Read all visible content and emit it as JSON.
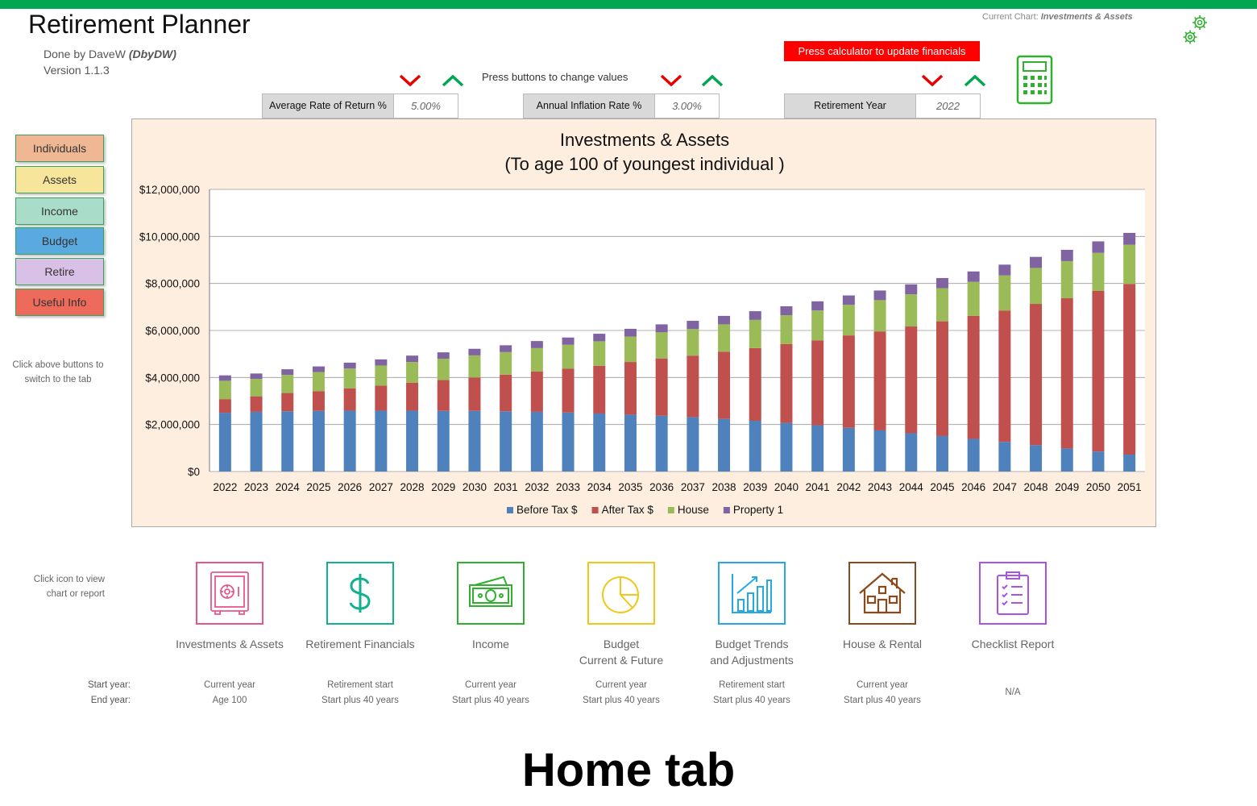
{
  "app": {
    "title": "Retirement Planner",
    "author_prefix": "Done by DaveW ",
    "author_tag": "(DbyDW)",
    "version": "Version 1.1.3",
    "current_chart_label": "Current Chart: ",
    "current_chart_value": "Investments & Assets"
  },
  "controls": {
    "press_calc": "Press calculator to update financials",
    "press_hint": "Press buttons to change values",
    "params": [
      {
        "label": "Average Rate of Return %",
        "value": "5.00%"
      },
      {
        "label": "Annual Inflation Rate %",
        "value": "3.00%"
      },
      {
        "label": "Retirement Year",
        "value": "2022"
      }
    ]
  },
  "nav": {
    "items": [
      {
        "label": "Individuals",
        "color": "#f0b794"
      },
      {
        "label": "Assets",
        "color": "#f7e59b"
      },
      {
        "label": "Income",
        "color": "#a9dcc9"
      },
      {
        "label": "Budget",
        "color": "#5aaae0"
      },
      {
        "label": "Retire",
        "color": "#d9c0e6"
      },
      {
        "label": "Useful Info",
        "color": "#ee6b5c"
      }
    ],
    "hint": "Click above buttons to switch to the tab"
  },
  "chart_data": {
    "type": "bar",
    "stacked": true,
    "title": "Investments & Assets",
    "subtitle": "(To age 100 of youngest individual )",
    "ylim": [
      0,
      12000000
    ],
    "yticks": [
      "$0",
      "$2,000,000",
      "$4,000,000",
      "$6,000,000",
      "$8,000,000",
      "$10,000,000",
      "$12,000,000"
    ],
    "grid": true,
    "legend_position": "bottom",
    "categories": [
      "2022",
      "2023",
      "2024",
      "2025",
      "2026",
      "2027",
      "2028",
      "2029",
      "2030",
      "2031",
      "2032",
      "2033",
      "2034",
      "2035",
      "2036",
      "2037",
      "2038",
      "2039",
      "2040",
      "2041",
      "2042",
      "2043",
      "2044",
      "2045",
      "2046",
      "2047",
      "2048",
      "2049",
      "2050",
      "2051"
    ],
    "series": [
      {
        "name": "Before Tax $",
        "color": "#4f81bd",
        "values": [
          2500000,
          2540000,
          2560000,
          2580000,
          2590000,
          2590000,
          2590000,
          2580000,
          2580000,
          2560000,
          2540000,
          2510000,
          2470000,
          2420000,
          2370000,
          2310000,
          2240000,
          2160000,
          2070000,
          1970000,
          1860000,
          1750000,
          1630000,
          1510000,
          1390000,
          1260000,
          1120000,
          980000,
          850000,
          720000
        ]
      },
      {
        "name": "After Tax $",
        "color": "#c0504d",
        "values": [
          580000,
          660000,
          780000,
          840000,
          950000,
          1060000,
          1190000,
          1310000,
          1420000,
          1560000,
          1720000,
          1870000,
          2030000,
          2240000,
          2440000,
          2620000,
          2860000,
          3090000,
          3350000,
          3610000,
          3930000,
          4210000,
          4540000,
          4880000,
          5230000,
          5590000,
          6010000,
          6390000,
          6830000,
          7260000
        ]
      },
      {
        "name": "House",
        "color": "#9bbb59",
        "values": [
          780000,
          740000,
          770000,
          810000,
          840000,
          860000,
          880000,
          910000,
          940000,
          960000,
          990000,
          1010000,
          1040000,
          1080000,
          1110000,
          1130000,
          1160000,
          1200000,
          1230000,
          1270000,
          1300000,
          1330000,
          1370000,
          1410000,
          1450000,
          1490000,
          1530000,
          1580000,
          1620000,
          1670000
        ]
      },
      {
        "name": "Property 1",
        "color": "#8064a2",
        "values": [
          230000,
          230000,
          240000,
          240000,
          250000,
          260000,
          270000,
          270000,
          280000,
          290000,
          300000,
          310000,
          320000,
          330000,
          340000,
          350000,
          360000,
          370000,
          380000,
          390000,
          400000,
          410000,
          420000,
          430000,
          440000,
          460000,
          470000,
          480000,
          490000,
          500000
        ]
      }
    ]
  },
  "tiles": {
    "hint": "Click icon to view chart or report",
    "start_label": "Start year:",
    "end_label": "End year:",
    "items": [
      {
        "label": "Investments & Assets",
        "label2": "",
        "icon": "safe-icon",
        "color": "#e7578e",
        "start": "Current year",
        "end": "Age 100"
      },
      {
        "label": "Retirement Financials",
        "label2": "",
        "icon": "dollar-icon",
        "color": "#13b08e",
        "start": "Retirement start",
        "end": "Start plus 40 years"
      },
      {
        "label": "Income",
        "label2": "",
        "icon": "cash-icon",
        "color": "#2fb12f",
        "start": "Current year",
        "end": "Start plus 40 years"
      },
      {
        "label": "Budget",
        "label2": "Current & Future",
        "icon": "pie-chart-icon",
        "color": "#f2c71c",
        "start": "Current year",
        "end": "Start plus 40 years"
      },
      {
        "label": "Budget Trends",
        "label2": "and Adjustments",
        "icon": "bar-growth-icon",
        "color": "#26a9e0",
        "start": "Retirement start",
        "end": "Start plus 40 years"
      },
      {
        "label": "House & Rental",
        "label2": "",
        "icon": "house-icon",
        "color": "#8a4b1c",
        "start": "Current year",
        "end": "Start plus 40 years"
      },
      {
        "label": "Checklist Report",
        "label2": "",
        "icon": "clipboard-icon",
        "color": "#a855e6",
        "start": "N/A",
        "end": ""
      }
    ]
  },
  "caption": "Home tab"
}
